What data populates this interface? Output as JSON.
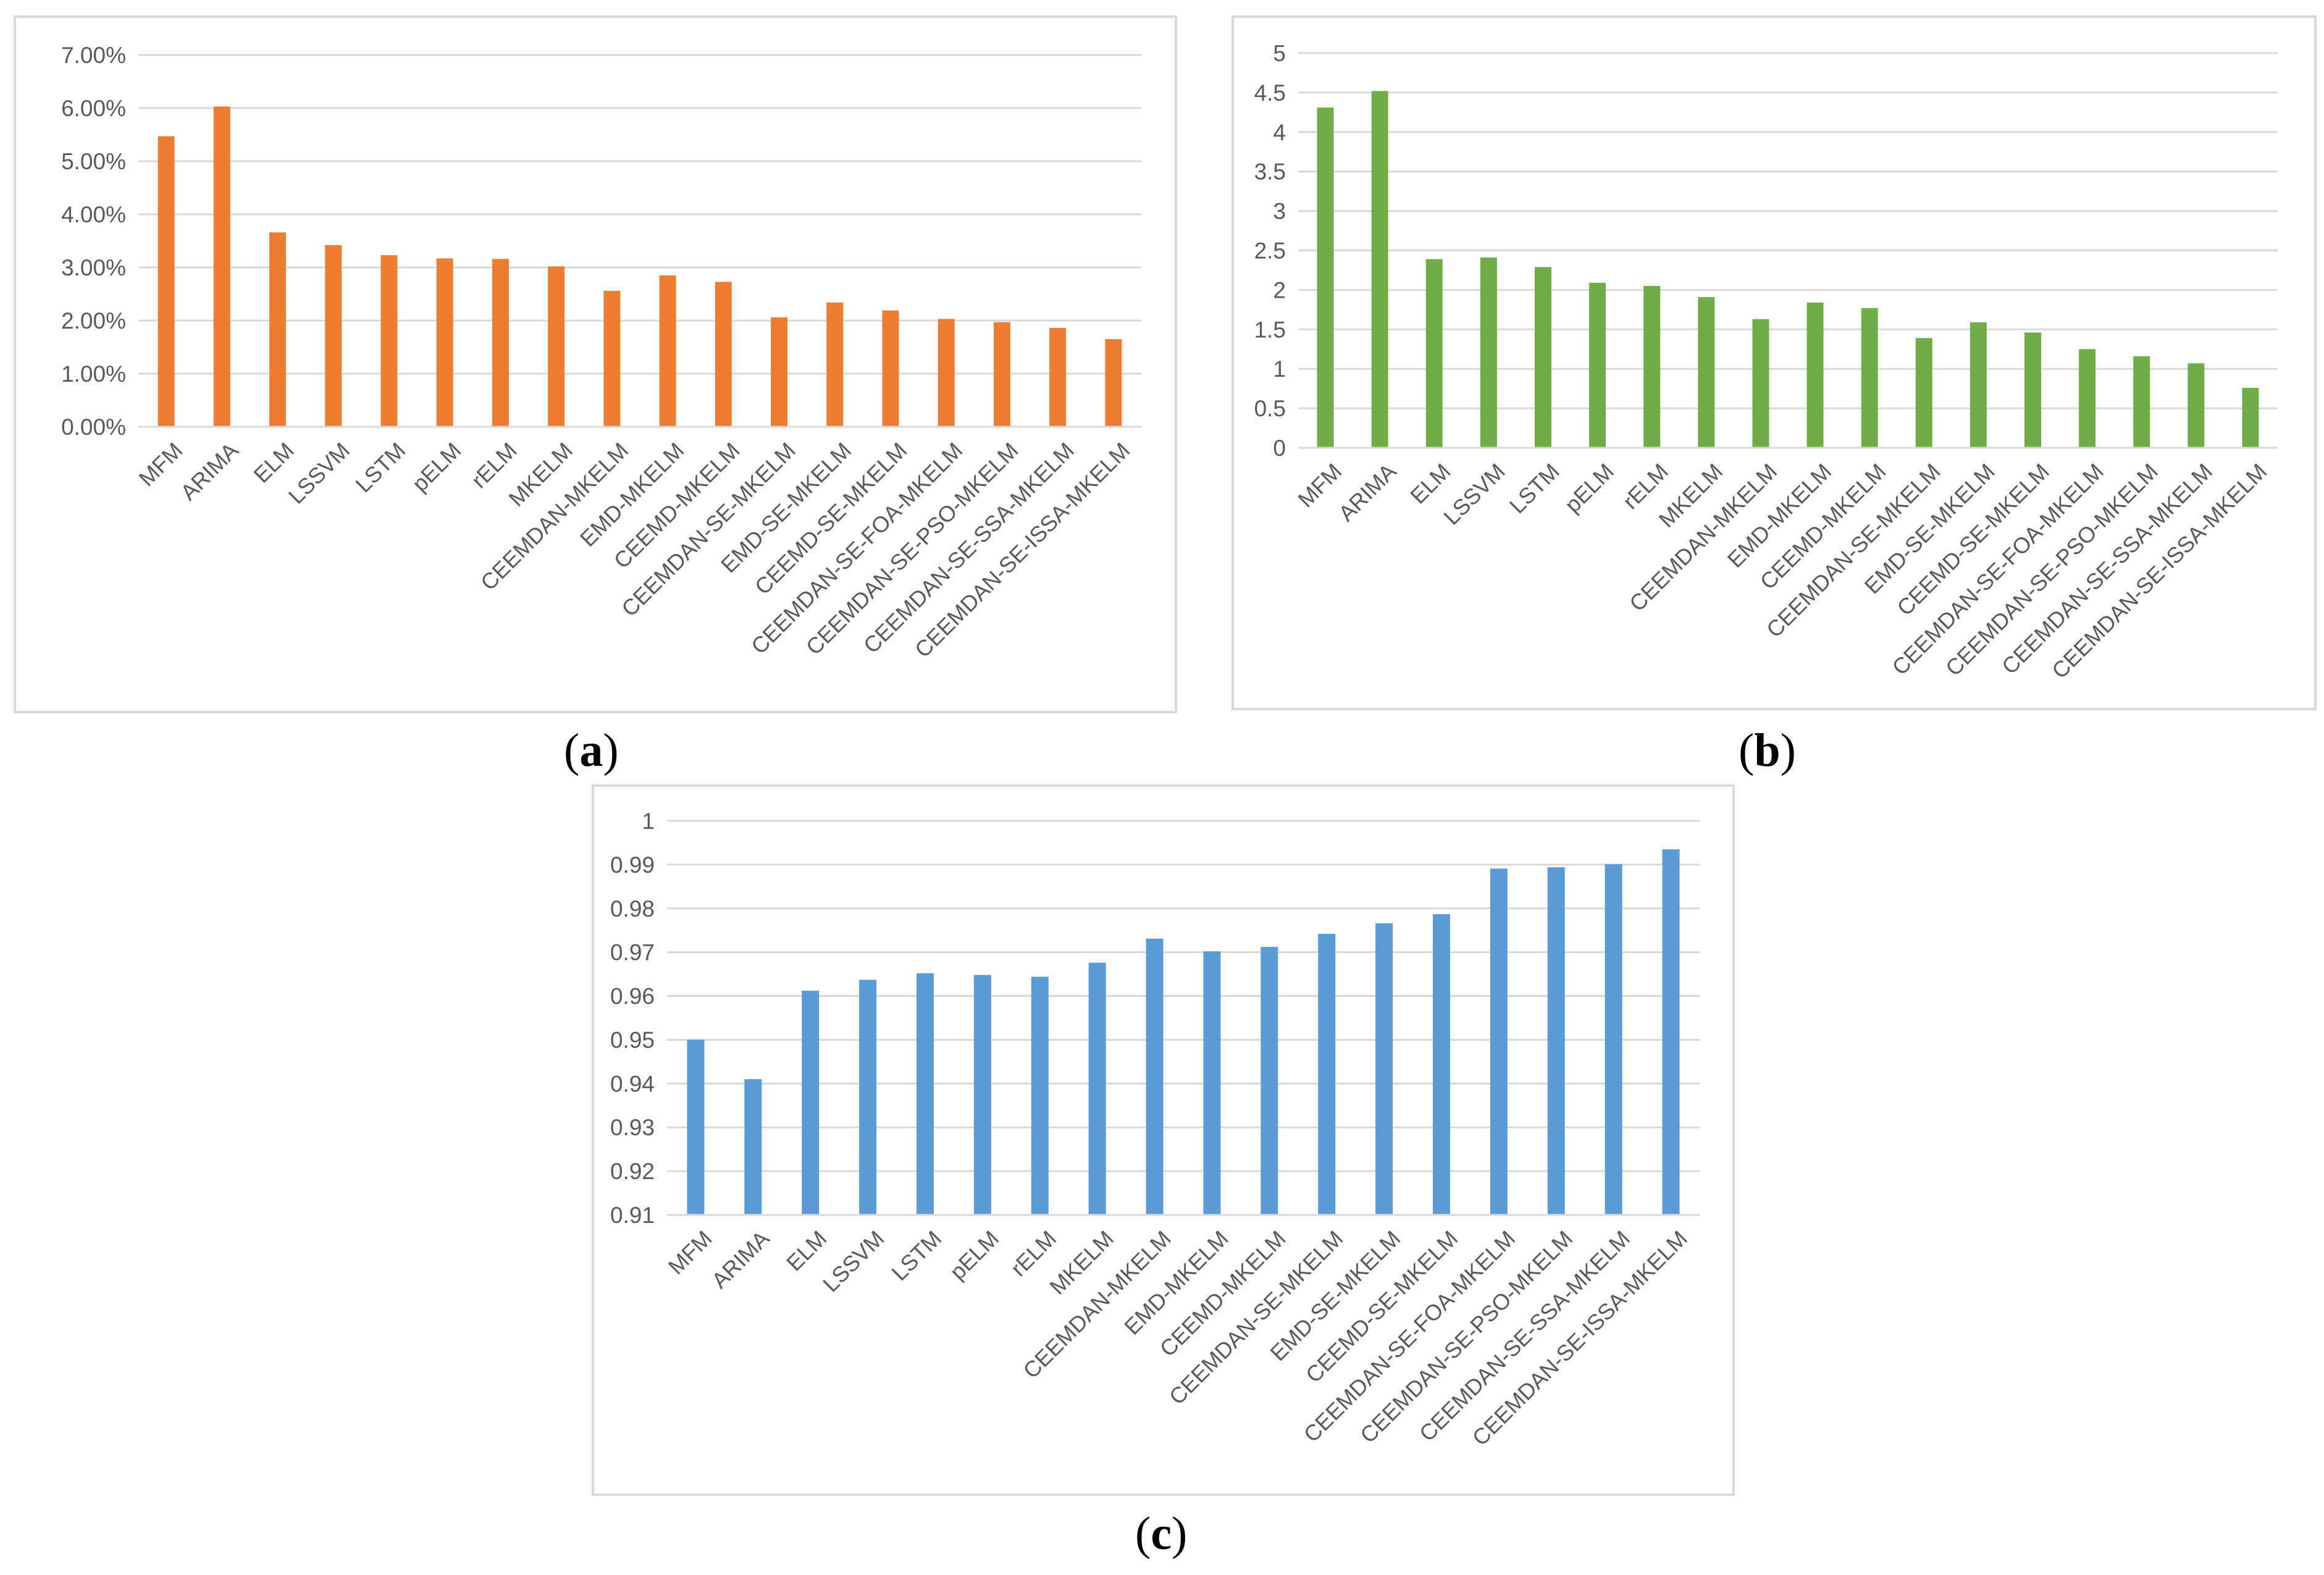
{
  "captions": {
    "a": "a",
    "b": "b",
    "c": "c"
  },
  "chart_data": [
    {
      "id": "a",
      "type": "bar",
      "title": "",
      "xlabel": "",
      "ylabel": "",
      "color": "#ED7D31",
      "ylim": [
        0,
        0.07
      ],
      "yticks": [
        0,
        0.01,
        0.02,
        0.03,
        0.04,
        0.05,
        0.06,
        0.07
      ],
      "ytick_labels": [
        "0.00%",
        "1.00%",
        "2.00%",
        "3.00%",
        "4.00%",
        "5.00%",
        "6.00%",
        "7.00%"
      ],
      "grid": true,
      "categories": [
        "MFM",
        "ARIMA",
        "ELM",
        "LSSVM",
        "LSTM",
        "pELM",
        "rELM",
        "MKELM",
        "CEEMDAN-MKELM",
        "EMD-MKELM",
        "CEEMD-MKELM",
        "CEEMDAN-SE-MKELM",
        "EMD-SE-MKELM",
        "CEEMD-SE-MKELM",
        "CEEMDAN-SE-FOA-MKELM",
        "CEEMDAN-SE-PSO-MKELM",
        "CEEMDAN-SE-SSA-MKELM",
        "CEEMDAN-SE-ISSA-MKELM"
      ],
      "values": [
        0.0547,
        0.0603,
        0.0366,
        0.0342,
        0.0323,
        0.0317,
        0.0316,
        0.0302,
        0.0256,
        0.0285,
        0.0273,
        0.0206,
        0.0234,
        0.0219,
        0.0203,
        0.0197,
        0.0186,
        0.0165
      ]
    },
    {
      "id": "b",
      "type": "bar",
      "title": "",
      "xlabel": "",
      "ylabel": "",
      "color": "#70AD47",
      "ylim": [
        0,
        5
      ],
      "yticks": [
        0,
        0.5,
        1,
        1.5,
        2,
        2.5,
        3,
        3.5,
        4,
        4.5,
        5
      ],
      "ytick_labels": [
        "0",
        "0.5",
        "1",
        "1.5",
        "2",
        "2.5",
        "3",
        "3.5",
        "4",
        "4.5",
        "5"
      ],
      "grid": true,
      "categories": [
        "MFM",
        "ARIMA",
        "ELM",
        "LSSVM",
        "LSTM",
        "pELM",
        "rELM",
        "MKELM",
        "CEEMDAN-MKELM",
        "EMD-MKELM",
        "CEEMD-MKELM",
        "CEEMDAN-SE-MKELM",
        "EMD-SE-MKELM",
        "CEEMD-SE-MKELM",
        "CEEMDAN-SE-FOA-MKELM",
        "CEEMDAN-SE-PSO-MKELM",
        "CEEMDAN-SE-SSA-MKELM",
        "CEEMDAN-SE-ISSA-MKELM"
      ],
      "values": [
        4.31,
        4.52,
        2.39,
        2.41,
        2.29,
        2.09,
        2.05,
        1.91,
        1.63,
        1.84,
        1.77,
        1.39,
        1.59,
        1.46,
        1.25,
        1.16,
        1.07,
        0.76
      ]
    },
    {
      "id": "c",
      "type": "bar",
      "title": "",
      "xlabel": "",
      "ylabel": "",
      "color": "#5B9BD5",
      "ylim": [
        0.91,
        1
      ],
      "yticks": [
        0.91,
        0.92,
        0.93,
        0.94,
        0.95,
        0.96,
        0.97,
        0.98,
        0.99,
        1
      ],
      "ytick_labels": [
        "0.91",
        "0.92",
        "0.93",
        "0.94",
        "0.95",
        "0.96",
        "0.97",
        "0.98",
        "0.99",
        "1"
      ],
      "grid": true,
      "categories": [
        "MFM",
        "ARIMA",
        "ELM",
        "LSSVM",
        "LSTM",
        "pELM",
        "rELM",
        "MKELM",
        "CEEMDAN-MKELM",
        "EMD-MKELM",
        "CEEMD-MKELM",
        "CEEMDAN-SE-MKELM",
        "EMD-SE-MKELM",
        "CEEMD-SE-MKELM",
        "CEEMDAN-SE-FOA-MKELM",
        "CEEMDAN-SE-PSO-MKELM",
        "CEEMDAN-SE-SSA-MKELM",
        "CEEMDAN-SE-ISSA-MKELM"
      ],
      "values": [
        0.95,
        0.941,
        0.9612,
        0.9637,
        0.9652,
        0.9648,
        0.9644,
        0.9676,
        0.9731,
        0.9702,
        0.9712,
        0.9742,
        0.9766,
        0.9787,
        0.9891,
        0.9894,
        0.9901,
        0.9935
      ]
    }
  ]
}
